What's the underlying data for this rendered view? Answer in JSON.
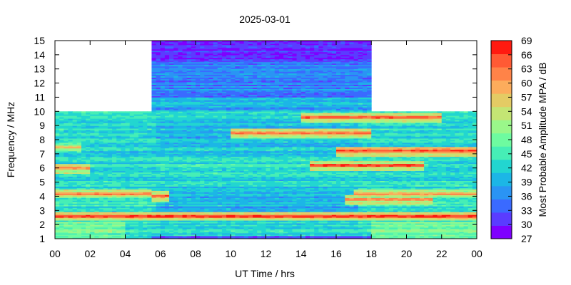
{
  "chart_data": {
    "type": "heatmap",
    "title": "2025-03-01",
    "xlabel": "UT Time / hrs",
    "ylabel": "Frequency / MHz",
    "colorbar_label": "Most Probable Amplitude MPA / dB",
    "xlim": [
      0,
      24
    ],
    "ylim": [
      1,
      15
    ],
    "clim": [
      27,
      69
    ],
    "x_ticks": [
      "00",
      "02",
      "04",
      "06",
      "08",
      "10",
      "12",
      "14",
      "16",
      "18",
      "20",
      "22",
      "00"
    ],
    "y_ticks": [
      "1",
      "2",
      "3",
      "4",
      "5",
      "6",
      "7",
      "8",
      "9",
      "10",
      "11",
      "12",
      "13",
      "14",
      "15"
    ],
    "colorbar_ticks": [
      "27",
      "30",
      "33",
      "36",
      "39",
      "42",
      "45",
      "48",
      "51",
      "54",
      "57",
      "60",
      "63",
      "66",
      "69"
    ],
    "colorbar_colors": [
      "#7f00ff",
      "#5a3cff",
      "#3a6aff",
      "#2a94f4",
      "#1cb6e6",
      "#22d6d0",
      "#46eeb6",
      "#6efba0",
      "#9af78a",
      "#c4e574",
      "#e4cb64",
      "#fcac5c",
      "#ff8348",
      "#ff5a34",
      "#ff1a10"
    ],
    "grid": false,
    "coverage": [
      {
        "t_start": 0,
        "t_end": 5.5,
        "f_max": 10
      },
      {
        "t_start": 5.5,
        "t_end": 18,
        "f_max": 15
      },
      {
        "t_start": 18,
        "t_end": 24,
        "f_max": 10
      }
    ],
    "hot_bands": [
      {
        "freq": 2.6,
        "t_start": 0,
        "t_end": 24,
        "mpa": 65
      },
      {
        "freq": 4.2,
        "t_start": 0,
        "t_end": 5.5,
        "mpa": 62
      },
      {
        "freq": 4.0,
        "t_start": 5.5,
        "t_end": 6.5,
        "mpa": 63
      },
      {
        "freq": 3.8,
        "t_start": 16.5,
        "t_end": 21.5,
        "mpa": 62
      },
      {
        "freq": 4.2,
        "t_start": 17,
        "t_end": 24,
        "mpa": 60
      },
      {
        "freq": 6.2,
        "t_start": 14.5,
        "t_end": 21,
        "mpa": 64
      },
      {
        "freq": 7.2,
        "t_start": 16,
        "t_end": 24,
        "mpa": 66
      },
      {
        "freq": 8.5,
        "t_start": 10,
        "t_end": 18,
        "mpa": 63
      },
      {
        "freq": 9.6,
        "t_start": 14,
        "t_end": 22,
        "mpa": 63
      },
      {
        "freq": 6.0,
        "t_start": 0,
        "t_end": 2,
        "mpa": 62
      },
      {
        "freq": 7.5,
        "t_start": 0,
        "t_end": 1.5,
        "mpa": 58
      }
    ],
    "night_background_mpa": 42,
    "high_band_mpa": 36
  }
}
